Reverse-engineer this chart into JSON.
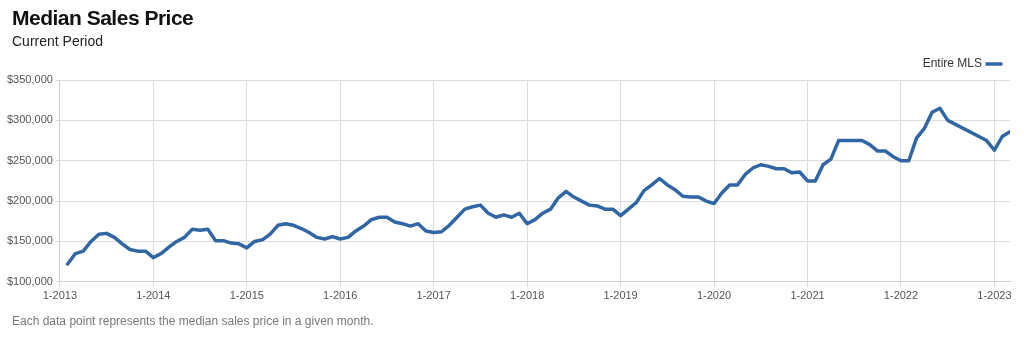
{
  "chart_data": {
    "type": "line",
    "title": "Median Sales Price",
    "subtitle": "Current Period",
    "x": [
      "2013-02",
      "2013-03",
      "2013-04",
      "2013-05",
      "2013-06",
      "2013-07",
      "2013-08",
      "2013-09",
      "2013-10",
      "2013-11",
      "2013-12",
      "2014-01",
      "2014-02",
      "2014-03",
      "2014-04",
      "2014-05",
      "2014-06",
      "2014-07",
      "2014-08",
      "2014-09",
      "2014-10",
      "2014-11",
      "2014-12",
      "2015-01",
      "2015-02",
      "2015-03",
      "2015-04",
      "2015-05",
      "2015-06",
      "2015-07",
      "2015-08",
      "2015-09",
      "2015-10",
      "2015-11",
      "2015-12",
      "2016-01",
      "2016-02",
      "2016-03",
      "2016-04",
      "2016-05",
      "2016-06",
      "2016-07",
      "2016-08",
      "2016-09",
      "2016-10",
      "2016-11",
      "2016-12",
      "2017-01",
      "2017-02",
      "2017-03",
      "2017-04",
      "2017-05",
      "2017-06",
      "2017-07",
      "2017-08",
      "2017-09",
      "2017-10",
      "2017-11",
      "2017-12",
      "2018-01",
      "2018-02",
      "2018-03",
      "2018-04",
      "2018-05",
      "2018-06",
      "2018-07",
      "2018-08",
      "2018-09",
      "2018-10",
      "2018-11",
      "2018-12",
      "2019-01",
      "2019-02",
      "2019-03",
      "2019-04",
      "2019-05",
      "2019-06",
      "2019-07",
      "2019-08",
      "2019-09",
      "2019-10",
      "2019-11",
      "2019-12",
      "2020-01",
      "2020-02",
      "2020-03",
      "2020-04",
      "2020-05",
      "2020-06",
      "2020-07",
      "2020-08",
      "2020-09",
      "2020-10",
      "2020-11",
      "2020-12",
      "2021-01",
      "2021-02",
      "2021-03",
      "2021-04",
      "2021-05",
      "2021-06",
      "2021-07",
      "2021-08",
      "2021-09",
      "2021-10",
      "2021-11",
      "2021-12",
      "2022-01",
      "2022-02",
      "2022-03",
      "2022-04",
      "2022-05",
      "2022-06",
      "2022-07",
      "2022-12",
      "2023-01",
      "2023-02",
      "2023-03"
    ],
    "series": [
      {
        "name": "Entire MLS",
        "color": "#2f66a3",
        "values": [
          122000,
          135000,
          138000,
          150000,
          159000,
          160000,
          155000,
          147000,
          140000,
          138000,
          138000,
          130000,
          135000,
          143000,
          150000,
          155000,
          165000,
          164000,
          165000,
          151000,
          151000,
          148000,
          147000,
          142000,
          150000,
          152000,
          159000,
          170000,
          172000,
          170000,
          166000,
          161000,
          155000,
          153000,
          156000,
          153000,
          155000,
          163000,
          169000,
          177000,
          180000,
          180000,
          174000,
          172000,
          169000,
          172000,
          163000,
          161000,
          162000,
          170000,
          180000,
          190000,
          193000,
          195000,
          185000,
          180000,
          183000,
          180000,
          185000,
          172000,
          177000,
          185000,
          190000,
          204000,
          212000,
          205000,
          200000,
          195000,
          194000,
          190000,
          190000,
          182000,
          190000,
          198000,
          213000,
          220000,
          228000,
          220000,
          214000,
          206000,
          205000,
          205000,
          200000,
          197000,
          210000,
          220000,
          220000,
          233000,
          241000,
          245000,
          243000,
          240000,
          240000,
          235000,
          236000,
          225000,
          225000,
          245000,
          252000,
          275000,
          275000,
          275000,
          275000,
          270000,
          262000,
          262000,
          255000,
          250000,
          250000,
          278000,
          290000,
          310000,
          315000,
          300000,
          275000,
          263000,
          280000,
          286000
        ]
      }
    ],
    "xlim": [
      "2013-01",
      "2023-03"
    ],
    "xticks": [
      {
        "value": "2013-01",
        "label": "1-2013"
      },
      {
        "value": "2014-01",
        "label": "1-2014"
      },
      {
        "value": "2015-01",
        "label": "1-2015"
      },
      {
        "value": "2016-01",
        "label": "1-2016"
      },
      {
        "value": "2017-01",
        "label": "1-2017"
      },
      {
        "value": "2018-01",
        "label": "1-2018"
      },
      {
        "value": "2019-01",
        "label": "1-2019"
      },
      {
        "value": "2020-01",
        "label": "1-2020"
      },
      {
        "value": "2021-01",
        "label": "1-2021"
      },
      {
        "value": "2022-01",
        "label": "1-2022"
      },
      {
        "value": "2023-01",
        "label": "1-2023"
      }
    ],
    "ylim": [
      100000,
      350000
    ],
    "yticks": [
      {
        "value": 100000,
        "label": "$100,000"
      },
      {
        "value": 150000,
        "label": "$150,000"
      },
      {
        "value": 200000,
        "label": "$200,000"
      },
      {
        "value": 250000,
        "label": "$250,000"
      },
      {
        "value": 300000,
        "label": "$300,000"
      },
      {
        "value": 350000,
        "label": "$350,000"
      }
    ],
    "grid": true,
    "legend": "top right",
    "marker": "none",
    "line_style": "solid",
    "annotations": [
      "Each data point represents the median sales price in a given month."
    ]
  }
}
